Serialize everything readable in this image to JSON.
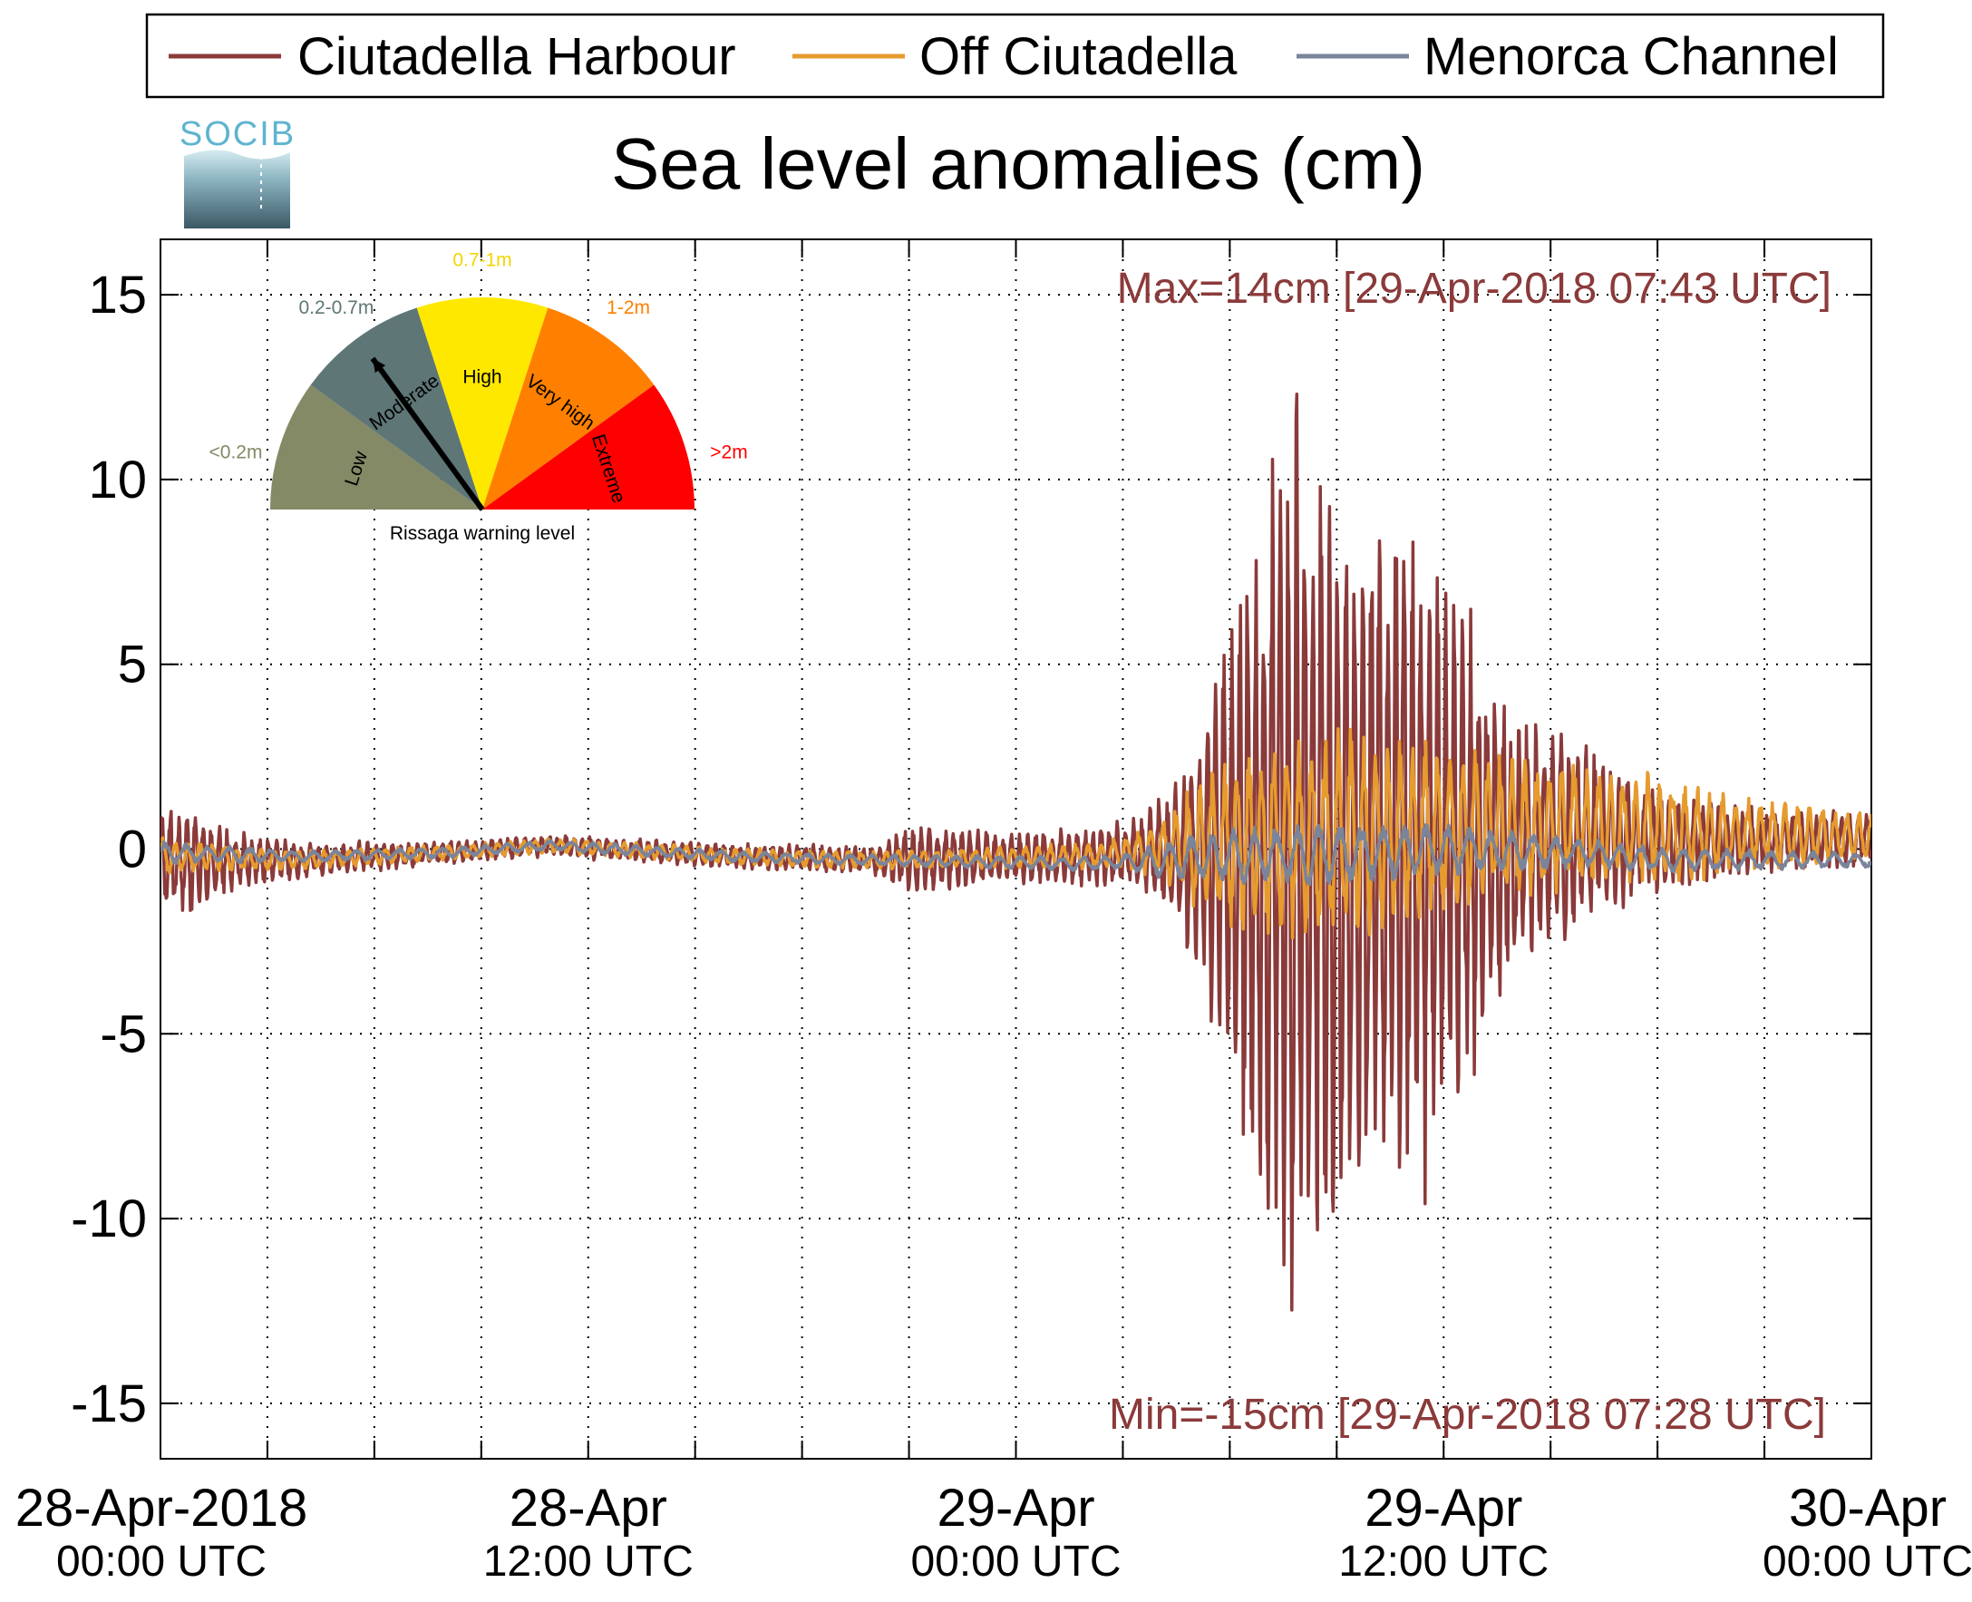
{
  "logo_text": "SOCIB",
  "chart_data": {
    "type": "line",
    "title": "Sea level anomalies (cm)",
    "xlabel": "",
    "ylabel": "",
    "ylim": [
      -16.5,
      16.5
    ],
    "y_ticks": [
      15,
      10,
      5,
      0,
      -5,
      -10,
      -15
    ],
    "y_tick_labels": [
      "15",
      "10",
      "5",
      "0",
      "-5",
      "-10",
      "-15"
    ],
    "x_range_hours": [
      0,
      48
    ],
    "x_ticks": [
      {
        "hours": 0,
        "date": "28-Apr-2018",
        "time": "00:00 UTC"
      },
      {
        "hours": 12,
        "date": "28-Apr",
        "time": "12:00 UTC"
      },
      {
        "hours": 24,
        "date": "29-Apr",
        "time": "00:00 UTC"
      },
      {
        "hours": 36,
        "date": "29-Apr",
        "time": "12:00 UTC"
      },
      {
        "hours": 48,
        "date": "30-Apr",
        "time": "00:00 UTC"
      }
    ],
    "minor_x_ticks_hours": [
      3,
      6,
      9,
      15,
      18,
      21,
      27,
      30,
      33,
      39,
      42,
      45
    ],
    "grid": true,
    "legend_position": "top",
    "max_annotation": "Max=14cm [29-Apr-2018 07:43 UTC]",
    "min_annotation": "Min=-15cm [29-Apr-2018 07:28 UTC]",
    "series": [
      {
        "name": "Ciutadella Harbour",
        "color": "#8b3a3a",
        "envelope": [
          [
            0,
            1.5
          ],
          [
            1,
            1.5
          ],
          [
            2,
            0.8
          ],
          [
            4,
            0.5
          ],
          [
            6,
            0.4
          ],
          [
            10,
            0.3
          ],
          [
            20,
            0.4
          ],
          [
            21,
            1.0
          ],
          [
            24,
            0.7
          ],
          [
            27,
            0.9
          ],
          [
            28,
            1.5
          ],
          [
            29,
            3
          ],
          [
            30,
            7
          ],
          [
            31,
            11
          ],
          [
            31.7,
            14
          ],
          [
            32.5,
            12
          ],
          [
            33.5,
            11
          ],
          [
            35,
            10
          ],
          [
            36,
            8
          ],
          [
            37,
            6
          ],
          [
            38,
            4
          ],
          [
            40,
            2.5
          ],
          [
            42,
            1.5
          ],
          [
            44,
            1
          ],
          [
            48,
            0.8
          ]
        ],
        "baseline": [
          [
            0,
            -0.3
          ],
          [
            4,
            -0.3
          ],
          [
            8,
            -0.1
          ],
          [
            11,
            0.1
          ],
          [
            16,
            -0.2
          ],
          [
            20,
            -0.3
          ],
          [
            26,
            -0.2
          ],
          [
            30,
            0
          ],
          [
            36,
            -0.2
          ],
          [
            40,
            0.3
          ],
          [
            44,
            0.2
          ],
          [
            48,
            0.3
          ]
        ],
        "period_hours": 0.23
      },
      {
        "name": "Off Ciutadella",
        "color": "#e69b2e",
        "envelope": [
          [
            0,
            0.5
          ],
          [
            1,
            0.4
          ],
          [
            4,
            0.25
          ],
          [
            10,
            0.2
          ],
          [
            20,
            0.25
          ],
          [
            24,
            0.3
          ],
          [
            27,
            0.4
          ],
          [
            28,
            0.8
          ],
          [
            29,
            1.8
          ],
          [
            31,
            2.8
          ],
          [
            33,
            3
          ],
          [
            35,
            2.6
          ],
          [
            37,
            2.2
          ],
          [
            39,
            1.8
          ],
          [
            42,
            1.5
          ],
          [
            44,
            1.1
          ],
          [
            48,
            0.7
          ]
        ],
        "baseline": [
          [
            0,
            -0.2
          ],
          [
            4,
            -0.3
          ],
          [
            8,
            -0.1
          ],
          [
            11,
            0.1
          ],
          [
            16,
            -0.2
          ],
          [
            20,
            -0.3
          ],
          [
            26,
            -0.2
          ],
          [
            30,
            0.2
          ],
          [
            36,
            0.6
          ],
          [
            40,
            0.6
          ],
          [
            44,
            0.4
          ],
          [
            48,
            0.3
          ]
        ],
        "period_hours": 0.35
      },
      {
        "name": "Menorca Channel",
        "color": "#7a849a",
        "envelope": [
          [
            0,
            0.3
          ],
          [
            4,
            0.15
          ],
          [
            20,
            0.15
          ],
          [
            27,
            0.2
          ],
          [
            28,
            0.5
          ],
          [
            30,
            0.8
          ],
          [
            33,
            0.9
          ],
          [
            36,
            0.7
          ],
          [
            40,
            0.4
          ],
          [
            44,
            0.3
          ],
          [
            48,
            0.2
          ]
        ],
        "baseline": [
          [
            0,
            -0.1
          ],
          [
            4,
            -0.2
          ],
          [
            8,
            -0.1
          ],
          [
            11,
            0.1
          ],
          [
            16,
            -0.2
          ],
          [
            20,
            -0.3
          ],
          [
            26,
            -0.4
          ],
          [
            30,
            -0.2
          ],
          [
            36,
            0
          ],
          [
            40,
            -0.1
          ],
          [
            42,
            -0.3
          ],
          [
            48,
            -0.3
          ]
        ],
        "period_hours": 0.6
      }
    ]
  },
  "gauge": {
    "caption": "Rissaga warning level",
    "sectors": [
      {
        "label": "Low",
        "range": "<0.2m",
        "color": "#848a66",
        "range_color": "#848a66"
      },
      {
        "label": "Moderate",
        "range": "0.2-0.7m",
        "color": "#5e7676",
        "range_color": "#5e7676"
      },
      {
        "label": "High",
        "range": "0.7-1m",
        "color": "#ffe800",
        "range_color": "#f2d600"
      },
      {
        "label": "Very high",
        "range": "1-2m",
        "color": "#ff8000",
        "range_color": "#ff8000"
      },
      {
        "label": "Extreme",
        "range": ">2m",
        "color": "#ff0000",
        "range_color": "#ff0000"
      }
    ],
    "needle_level": "Moderate"
  }
}
